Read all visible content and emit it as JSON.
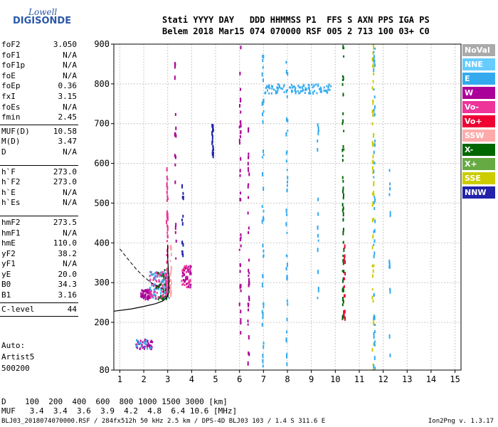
{
  "logo": {
    "line1": "Lowell",
    "line2": "DIGISONDE"
  },
  "header": {
    "labels": "Stati YYYY DAY   DDD HHMMSS P1  FFS S AXN PPS IGA PS",
    "values": "Belem 2018 Mar15 074 070000 RSF 005 2 713 100 03+ C0"
  },
  "params": {
    "group1": [
      {
        "k": "foF2",
        "v": "3.050"
      },
      {
        "k": "foF1",
        "v": "N/A"
      },
      {
        "k": "foF1p",
        "v": "N/A"
      },
      {
        "k": "foE",
        "v": "N/A"
      },
      {
        "k": "foEp",
        "v": "0.36"
      },
      {
        "k": "fxI",
        "v": "3.15"
      },
      {
        "k": "foEs",
        "v": "N/A"
      },
      {
        "k": "fmin",
        "v": "2.45"
      }
    ],
    "group2": [
      {
        "k": "MUF(D)",
        "v": "10.58"
      },
      {
        "k": "M(D)",
        "v": "3.47"
      },
      {
        "k": "D",
        "v": "N/A"
      }
    ],
    "group3": [
      {
        "k": "h`F",
        "v": "273.0"
      },
      {
        "k": "h`F2",
        "v": "273.0"
      },
      {
        "k": "h`E",
        "v": "N/A"
      },
      {
        "k": "h`Es",
        "v": "N/A"
      }
    ],
    "group4": [
      {
        "k": "hmF2",
        "v": "273.5"
      },
      {
        "k": "hmF1",
        "v": "N/A"
      },
      {
        "k": "hmE",
        "v": "110.0"
      },
      {
        "k": "yF2",
        "v": "38.2"
      },
      {
        "k": "yF1",
        "v": "N/A"
      },
      {
        "k": "yE",
        "v": "20.0"
      },
      {
        "k": "B0",
        "v": "34.3"
      },
      {
        "k": "B1",
        "v": "3.16"
      }
    ],
    "group5": [
      {
        "k": "C-level",
        "v": "44"
      }
    ]
  },
  "auto": {
    "line1": "Auto:",
    "line2": "Artist5",
    "line3": "500200"
  },
  "legend": [
    {
      "label": "NoVal",
      "color": "#aaaaaa"
    },
    {
      "label": "NNE",
      "color": "#66ccff"
    },
    {
      "label": "E",
      "color": "#33aaee"
    },
    {
      "label": "W",
      "color": "#aa0099"
    },
    {
      "label": "Vo-",
      "color": "#ee3399"
    },
    {
      "label": "Vo+",
      "color": "#ee0033"
    },
    {
      "label": "SSW",
      "color": "#ffaaaa"
    },
    {
      "label": "X-",
      "color": "#006600"
    },
    {
      "label": "X+",
      "color": "#66aa44"
    },
    {
      "label": "SSE",
      "color": "#cccc00"
    },
    {
      "label": "NNW",
      "color": "#2222aa"
    }
  ],
  "bottom": {
    "d_row": "D    100  200  400  600  800 1000 1500 3000 [km]",
    "muf_row": "MUF   3.4  3.4  3.6  3.9  4.2  4.8  6.4 10.6 [MHz]"
  },
  "footer": {
    "left": "BLJ03_2018074070000.RSF / 284fx512h 50 kHz 2.5 km / DPS-4D BLJ03 103 / 1.4 S 311.6 E",
    "right": "Ion2Png v. 1.3.17"
  },
  "chart_data": {
    "type": "scatter",
    "xlim": [
      0.75,
      15.25
    ],
    "ylim": [
      80,
      900
    ],
    "x_ticks": [
      1,
      2,
      3,
      4,
      5,
      6,
      7,
      8,
      9,
      10,
      11,
      12,
      13,
      14,
      15
    ],
    "y_ticks": [
      80,
      200,
      300,
      400,
      500,
      600,
      700,
      800,
      900
    ],
    "grid": true,
    "profile_solid": [
      [
        0.75,
        228
      ],
      [
        1.5,
        234
      ],
      [
        2.0,
        240
      ],
      [
        2.5,
        247
      ],
      [
        2.8,
        254
      ],
      [
        2.95,
        262
      ],
      [
        3.05,
        275
      ],
      [
        3.05,
        300
      ],
      [
        3.03,
        330
      ],
      [
        3.0,
        360
      ],
      [
        3.0,
        395
      ]
    ],
    "profile_dashed": [
      [
        1.0,
        385
      ],
      [
        1.3,
        362
      ],
      [
        1.7,
        333
      ],
      [
        2.0,
        315
      ],
      [
        2.3,
        300
      ],
      [
        2.6,
        290
      ],
      [
        2.85,
        282
      ]
    ],
    "trace_clusters": [
      {
        "x": [
          1.85,
          2.3
        ],
        "y": [
          260,
          285
        ],
        "color": "#aa0099",
        "n": 60
      },
      {
        "x": [
          2.2,
          3.05
        ],
        "y": [
          262,
          330
        ],
        "color": "#33aaee",
        "n": 90
      },
      {
        "x": [
          2.2,
          3.05
        ],
        "y": [
          262,
          330
        ],
        "color": "#ee3399",
        "n": 70
      },
      {
        "x": [
          2.5,
          3.0
        ],
        "y": [
          260,
          340
        ],
        "color": "#006600",
        "n": 30
      },
      {
        "x": [
          3.55,
          3.95
        ],
        "y": [
          290,
          345
        ],
        "color": "#ee3399",
        "n": 45
      },
      {
        "x": [
          3.55,
          3.95
        ],
        "y": [
          290,
          345
        ],
        "color": "#aa0099",
        "n": 25
      },
      {
        "x": [
          1.65,
          2.35
        ],
        "y": [
          135,
          160
        ],
        "color": "#aa0099",
        "n": 40
      },
      {
        "x": [
          1.65,
          2.35
        ],
        "y": [
          135,
          160
        ],
        "color": "#33aaee",
        "n": 18
      },
      {
        "x": [
          7.0,
          9.8
        ],
        "y": [
          778,
          802
        ],
        "color": "#33aaee",
        "n": 110
      }
    ],
    "trace_columns": [
      {
        "x": 2.95,
        "y": [
          280,
          600
        ],
        "color": "#ee3399",
        "n": 40
      },
      {
        "x": 3.1,
        "y": [
          270,
          400
        ],
        "color": "#ffaaaa",
        "n": 25
      },
      {
        "x": 3.3,
        "y": [
          300,
          900
        ],
        "color": "#aa0099",
        "n": 18
      },
      {
        "x": 3.6,
        "y": [
          370,
          560
        ],
        "color": "#2222aa",
        "n": 16
      },
      {
        "x": 4.85,
        "y": [
          620,
          700
        ],
        "color": "#2222aa",
        "n": 22
      },
      {
        "x": 6.0,
        "y": [
          150,
          900
        ],
        "color": "#aa0099",
        "n": 40
      },
      {
        "x": 6.35,
        "y": [
          100,
          700
        ],
        "color": "#aa0099",
        "n": 35
      },
      {
        "x": 6.95,
        "y": [
          90,
          900
        ],
        "color": "#33aaee",
        "n": 45
      },
      {
        "x": 7.95,
        "y": [
          90,
          900
        ],
        "color": "#33aaee",
        "n": 40
      },
      {
        "x": 9.25,
        "y": [
          90,
          820
        ],
        "color": "#33aaee",
        "n": 18
      },
      {
        "x": 10.3,
        "y": [
          200,
          900
        ],
        "color": "#006600",
        "n": 50
      },
      {
        "x": 10.35,
        "y": [
          200,
          400
        ],
        "color": "#ee0033",
        "n": 15
      },
      {
        "x": 11.55,
        "y": [
          85,
          900
        ],
        "color": "#cccc00",
        "n": 55
      },
      {
        "x": 11.6,
        "y": [
          85,
          900
        ],
        "color": "#33aaee",
        "n": 45
      },
      {
        "x": 12.25,
        "y": [
          85,
          600
        ],
        "color": "#33aaee",
        "n": 14
      }
    ]
  }
}
